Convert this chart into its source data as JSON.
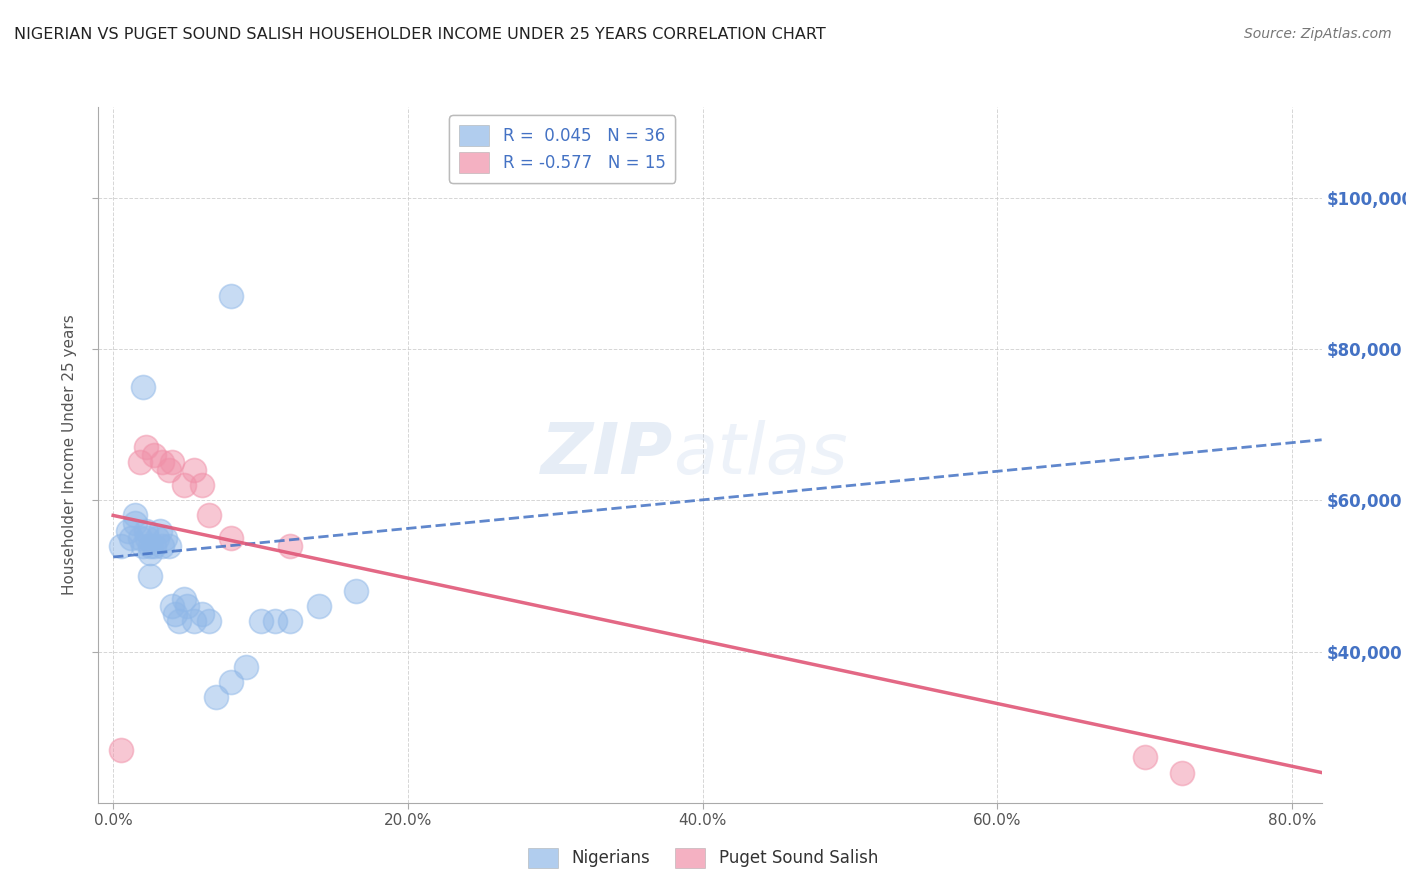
{
  "title": "NIGERIAN VS PUGET SOUND SALISH HOUSEHOLDER INCOME UNDER 25 YEARS CORRELATION CHART",
  "source": "Source: ZipAtlas.com",
  "ylabel": "Householder Income Under 25 years",
  "xlabel_ticks": [
    "0.0%",
    "20.0%",
    "40.0%",
    "60.0%",
    "80.0%"
  ],
  "xlabel_vals": [
    0.0,
    0.2,
    0.4,
    0.6,
    0.8
  ],
  "ytick_labels": [
    "$40,000",
    "$60,000",
    "$80,000",
    "$100,000"
  ],
  "ytick_vals": [
    40000,
    60000,
    80000,
    100000
  ],
  "xlim": [
    -0.01,
    0.82
  ],
  "ylim": [
    20000,
    112000
  ],
  "legend_entries": [
    {
      "label": "R =  0.045   N = 36",
      "color": "#aec6f0"
    },
    {
      "label": "R = -0.577   N = 15",
      "color": "#f4aabc"
    }
  ],
  "legend_bottom": [
    "Nigerians",
    "Puget Sound Salish"
  ],
  "watermark": "ZIPatlas",
  "blue_scatter_x": [
    0.005,
    0.01,
    0.012,
    0.015,
    0.015,
    0.018,
    0.02,
    0.022,
    0.023,
    0.025,
    0.025,
    0.028,
    0.03,
    0.032,
    0.033,
    0.035,
    0.038,
    0.04,
    0.042,
    0.045,
    0.048,
    0.05,
    0.055,
    0.06,
    0.065,
    0.07,
    0.08,
    0.09,
    0.1,
    0.11,
    0.12,
    0.14,
    0.165,
    0.08,
    0.02,
    0.025
  ],
  "blue_scatter_y": [
    54000,
    56000,
    55000,
    57000,
    58000,
    55000,
    54000,
    56000,
    55000,
    54000,
    53000,
    54000,
    55000,
    56000,
    54000,
    55000,
    54000,
    46000,
    45000,
    44000,
    47000,
    46000,
    44000,
    45000,
    44000,
    34000,
    36000,
    38000,
    44000,
    44000,
    44000,
    46000,
    48000,
    87000,
    75000,
    50000
  ],
  "pink_scatter_x": [
    0.005,
    0.018,
    0.022,
    0.028,
    0.033,
    0.038,
    0.04,
    0.048,
    0.055,
    0.06,
    0.065,
    0.08,
    0.12,
    0.7,
    0.725
  ],
  "pink_scatter_y": [
    27000,
    65000,
    67000,
    66000,
    65000,
    64000,
    65000,
    62000,
    64000,
    62000,
    58000,
    55000,
    54000,
    26000,
    24000
  ],
  "blue_line_x": [
    0.0,
    0.82
  ],
  "blue_line_y": [
    52500,
    68000
  ],
  "pink_line_x": [
    0.0,
    0.82
  ],
  "pink_line_y": [
    58000,
    24000
  ],
  "title_color": "#222222",
  "source_color": "#777777",
  "blue_color": "#90b8e8",
  "pink_color": "#f090a8",
  "blue_line_color": "#4472c4",
  "pink_line_color": "#e05878",
  "axis_color": "#555555",
  "grid_color": "#cccccc",
  "ylabel_color": "#555555",
  "right_tick_color": "#4472c4",
  "legend_text_color": "#4472c4"
}
